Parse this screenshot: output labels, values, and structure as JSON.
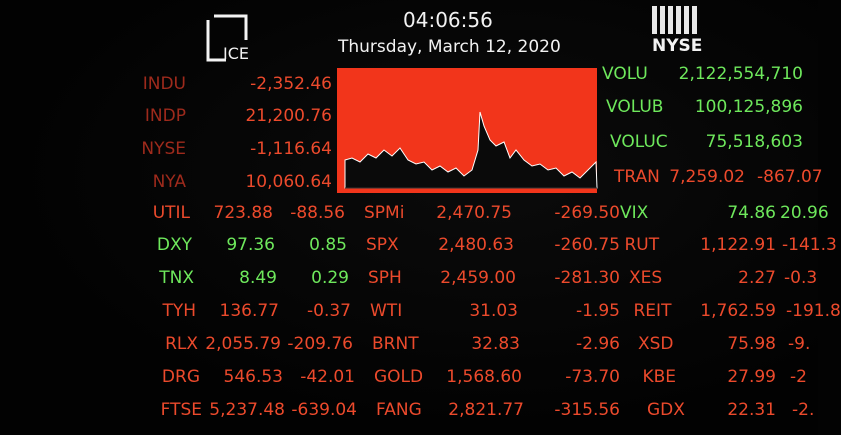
{
  "header": {
    "logo_left": "ICE",
    "time": "04:06:56",
    "date": "Thursday, March 12, 2020",
    "logo_right": "NYSE"
  },
  "indices": [
    [
      "INDU",
      "-2,352.46"
    ],
    [
      "INDP",
      "21,200.76"
    ],
    [
      "NYSE",
      "-1,116.64"
    ],
    [
      "NYA",
      "10,060.64"
    ]
  ],
  "volume": [
    [
      "VOLU",
      "2,122,554,710"
    ],
    [
      "VOLUB",
      "100,125,896"
    ],
    [
      "VOLUC",
      "75,518,603"
    ],
    [
      "TRAN",
      "7,259.02",
      "-867.07"
    ]
  ],
  "table": {
    "rows": [
      [
        "UTIL",
        "723.88",
        "-88.56",
        "SPMi",
        "2,470.75",
        "-269.50",
        "VIX",
        "74.86",
        "20.96"
      ],
      [
        "DXY",
        "97.36",
        "0.85",
        "SPX",
        "2,480.63",
        "-260.75",
        "RUT",
        "1,122.91",
        "-141.3"
      ],
      [
        "TNX",
        "8.49",
        "0.29",
        "SPH",
        "2,459.00",
        "-281.30",
        "XES",
        "2.27",
        "-0.3"
      ],
      [
        "TYH",
        "136.77",
        "-0.37",
        "WTI",
        "31.03",
        "-1.95",
        "REIT",
        "1,762.59",
        "-191.8"
      ],
      [
        "RLX",
        "2,055.79",
        "-209.76",
        "BRNT",
        "32.83",
        "-2.96",
        "XSD",
        "75.98",
        "-9."
      ],
      [
        "DRG",
        "546.53",
        "-42.01",
        "GOLD",
        "1,568.60",
        "-73.70",
        "KBE",
        "27.99",
        "-2"
      ],
      [
        "FTSE",
        "5,237.48",
        "-639.04",
        "FANG",
        "2,821.77",
        "-315.56",
        "GDX",
        "22.31",
        "-2."
      ]
    ]
  }
}
